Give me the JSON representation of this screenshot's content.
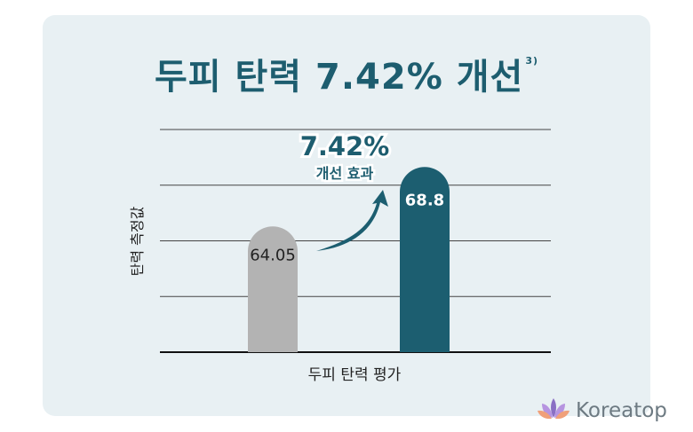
{
  "header": {
    "title": "두피 탄력 7.42% 개선",
    "footnote": "3)"
  },
  "chart_data": {
    "type": "bar",
    "categories": [
      "",
      ""
    ],
    "values": [
      64.05,
      68.8
    ],
    "value_labels": [
      "64.05",
      "68.8"
    ],
    "bar_colors": [
      "#b3b3b3",
      "#1c5e70"
    ],
    "xlabel": "두피 탄력 평가",
    "ylabel": "탄력 측정값",
    "grid": true,
    "annotation": {
      "value": "7.42%",
      "text": "개선 효과"
    }
  },
  "brand": {
    "name": "Koreatop",
    "icon": "lotus-icon"
  }
}
